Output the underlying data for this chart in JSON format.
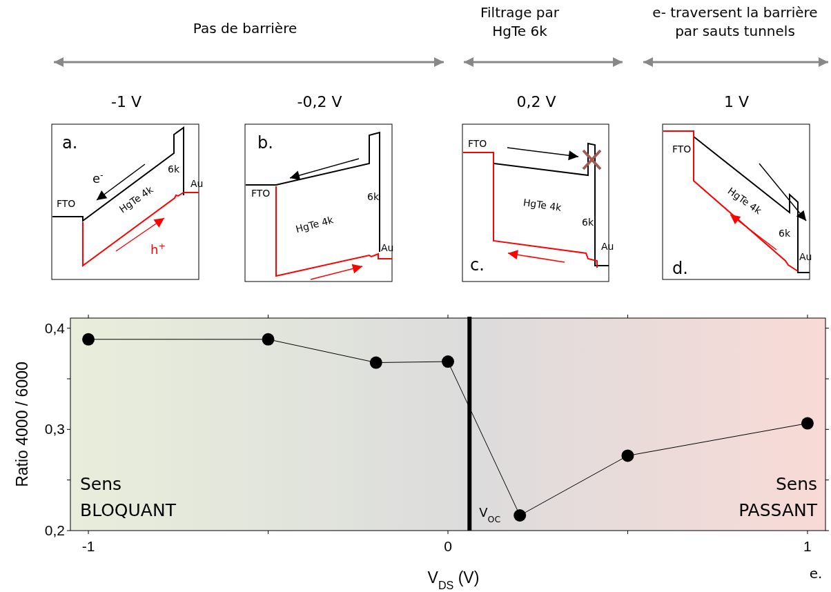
{
  "chart_data": {
    "type": "line",
    "xlabel": "V$_{DS}$ (V)",
    "ylabel": "Ratio 4000 / 6000",
    "x": [
      -1,
      -0.5,
      -0.2,
      0,
      0.2,
      0.5,
      1
    ],
    "series": [
      {
        "color": "#000000",
        "values": [
          0.389,
          0.389,
          0.366,
          0.367,
          0.215,
          0.274,
          0.306
        ]
      }
    ],
    "xlim": [
      -1.05,
      1.05
    ],
    "xticks": [
      -1,
      {
        "value": -0.5,
        "label": null
      },
      0,
      {
        "value": 0.5,
        "label": null
      },
      1
    ],
    "ylim": [
      0.2,
      0.41
    ],
    "yticks": [
      {
        "value": 0.2,
        "label": "0,2"
      },
      {
        "value": 0.25,
        "label": null
      },
      {
        "value": 0.3,
        "label": "0,3"
      },
      {
        "value": 0.35,
        "label": null
      },
      {
        "value": 0.4,
        "label": "0,4"
      }
    ],
    "grid": false,
    "marker": "circle",
    "line_style": "solid",
    "ref_lines": [
      {
        "axis": "x",
        "value": 0.06,
        "label": "V$_{OC}$",
        "color": "#000000"
      }
    ],
    "bands": [
      {
        "axis": "x",
        "from": -1.05,
        "to": 0.06,
        "label": "Sens\nBLOQUANT",
        "color": "#e8eedb"
      },
      {
        "axis": "x",
        "from": 0.06,
        "to": 1.05,
        "label": "Sens\nPASSANT",
        "color": "#f8dad6"
      }
    ],
    "annotations": [
      "Pas de barrière",
      "Filtrage par\nHgTe 6k",
      "e- traversent la barrière\npar sauts tunnels",
      "-1 V",
      "-0,2 V",
      "0,2 V",
      "1 V",
      "a.",
      "e$^{-}$",
      "FTO",
      "HgTe 4k",
      "6k",
      "Au",
      "h$^{+}$",
      "b.",
      "FTO",
      "HgTe 4k",
      "6k",
      "Au",
      "FTO",
      "HgTe 4k",
      "6k",
      "Au",
      "c.",
      "FTO",
      "HgTe 4k",
      "6k",
      "Au",
      "d.",
      "e."
    ]
  }
}
